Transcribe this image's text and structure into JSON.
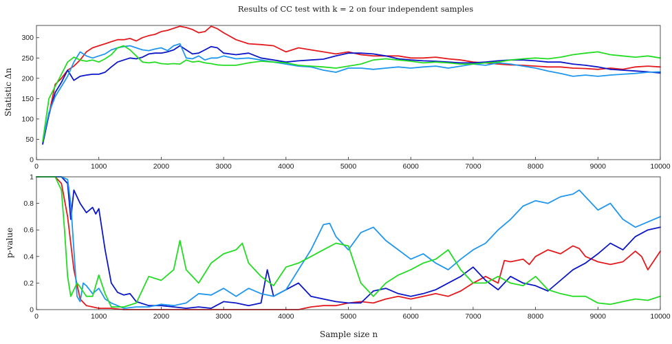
{
  "title": "Results of CC test with k = 2 on four independent samples",
  "colors": {
    "red": "#e3191c",
    "blue": "#0a15c8",
    "cyan": "#1e96f0",
    "green": "#22dc22"
  },
  "chart_data": [
    {
      "type": "line",
      "xlabel": "Sample size n",
      "ylabel": "Statistic Δn",
      "xlim": [
        0,
        10000
      ],
      "ylim": [
        0,
        330
      ],
      "xticks": [
        0,
        1000,
        2000,
        3000,
        4000,
        5000,
        6000,
        7000,
        8000,
        9000,
        10000
      ],
      "yticks": [
        0,
        50,
        100,
        150,
        200,
        250,
        300
      ],
      "grid": false,
      "series": [
        {
          "color": "#e3191c",
          "x": [
            100,
            200,
            300,
            400,
            500,
            600,
            700,
            800,
            900,
            1000,
            1100,
            1200,
            1300,
            1400,
            1500,
            1600,
            1700,
            1800,
            1900,
            2000,
            2100,
            2200,
            2300,
            2400,
            2500,
            2600,
            2700,
            2800,
            2900,
            3000,
            3200,
            3400,
            3600,
            3800,
            4000,
            4200,
            4400,
            4600,
            4800,
            5000,
            5200,
            5400,
            5600,
            5800,
            6000,
            6200,
            6400,
            6600,
            6800,
            7000,
            7200,
            7400,
            7600,
            7800,
            8000,
            8200,
            8400,
            8600,
            8800,
            9000,
            9200,
            9400,
            9600,
            9800,
            10000
          ],
          "y": [
            40,
            110,
            185,
            200,
            220,
            230,
            245,
            265,
            275,
            280,
            285,
            290,
            295,
            295,
            298,
            292,
            300,
            305,
            308,
            315,
            318,
            323,
            328,
            325,
            320,
            312,
            315,
            328,
            322,
            312,
            295,
            285,
            283,
            280,
            265,
            275,
            270,
            265,
            260,
            265,
            258,
            255,
            255,
            255,
            250,
            250,
            252,
            248,
            245,
            240,
            238,
            235,
            233,
            232,
            230,
            228,
            228,
            225,
            224,
            222,
            225,
            222,
            228,
            230,
            228
          ]
        },
        {
          "color": "#0a15c8",
          "x": [
            100,
            200,
            300,
            400,
            500,
            600,
            700,
            800,
            900,
            1000,
            1100,
            1200,
            1300,
            1400,
            1500,
            1600,
            1700,
            1800,
            1900,
            2000,
            2100,
            2200,
            2300,
            2400,
            2500,
            2600,
            2700,
            2800,
            2900,
            3000,
            3200,
            3400,
            3600,
            3800,
            4000,
            4200,
            4400,
            4600,
            4800,
            5000,
            5200,
            5400,
            5600,
            5800,
            6000,
            6200,
            6400,
            6600,
            6800,
            7000,
            7200,
            7400,
            7600,
            7800,
            8000,
            8200,
            8400,
            8600,
            8800,
            9000,
            9200,
            9400,
            9600,
            9800,
            10000
          ],
          "y": [
            38,
            110,
            165,
            190,
            220,
            195,
            205,
            208,
            210,
            210,
            215,
            228,
            240,
            245,
            250,
            248,
            252,
            260,
            262,
            262,
            265,
            270,
            280,
            270,
            260,
            262,
            270,
            278,
            275,
            262,
            258,
            262,
            250,
            245,
            240,
            243,
            245,
            247,
            255,
            262,
            262,
            260,
            255,
            248,
            245,
            243,
            242,
            240,
            238,
            238,
            240,
            243,
            245,
            245,
            243,
            240,
            240,
            235,
            232,
            228,
            222,
            220,
            218,
            216,
            213
          ]
        },
        {
          "color": "#1e96f0",
          "x": [
            100,
            200,
            300,
            400,
            500,
            600,
            700,
            800,
            900,
            1000,
            1100,
            1200,
            1300,
            1400,
            1500,
            1600,
            1700,
            1800,
            1900,
            2000,
            2100,
            2200,
            2300,
            2400,
            2500,
            2600,
            2700,
            2800,
            2900,
            3000,
            3200,
            3400,
            3600,
            3800,
            4000,
            4200,
            4400,
            4600,
            4800,
            5000,
            5200,
            5400,
            5600,
            5800,
            6000,
            6200,
            6400,
            6600,
            6800,
            7000,
            7200,
            7400,
            7600,
            7800,
            8000,
            8200,
            8400,
            8600,
            8800,
            9000,
            9200,
            9400,
            9600,
            9800,
            10000
          ],
          "y": [
            45,
            115,
            155,
            180,
            205,
            240,
            265,
            255,
            250,
            255,
            260,
            270,
            275,
            278,
            280,
            275,
            270,
            268,
            272,
            275,
            268,
            280,
            285,
            250,
            248,
            255,
            245,
            250,
            250,
            255,
            248,
            250,
            245,
            240,
            235,
            230,
            228,
            220,
            215,
            225,
            225,
            222,
            225,
            228,
            225,
            228,
            230,
            225,
            230,
            235,
            232,
            238,
            235,
            230,
            225,
            218,
            212,
            205,
            208,
            205,
            208,
            210,
            212,
            215,
            216
          ]
        },
        {
          "color": "#22dc22",
          "x": [
            100,
            200,
            300,
            400,
            500,
            600,
            700,
            800,
            900,
            1000,
            1100,
            1200,
            1300,
            1400,
            1500,
            1600,
            1700,
            1800,
            1900,
            2000,
            2100,
            2200,
            2300,
            2400,
            2500,
            2600,
            2700,
            2800,
            2900,
            3000,
            3200,
            3400,
            3600,
            3800,
            4000,
            4200,
            4400,
            4600,
            4800,
            5000,
            5200,
            5400,
            5600,
            5800,
            6000,
            6200,
            6400,
            6600,
            6800,
            7000,
            7200,
            7400,
            7600,
            7800,
            8000,
            8200,
            8400,
            8600,
            8800,
            9000,
            9200,
            9400,
            9600,
            9800,
            10000
          ],
          "y": [
            45,
            150,
            180,
            210,
            240,
            252,
            245,
            242,
            245,
            240,
            248,
            258,
            275,
            280,
            270,
            255,
            240,
            238,
            240,
            236,
            235,
            236,
            235,
            245,
            240,
            242,
            238,
            236,
            233,
            232,
            232,
            238,
            242,
            240,
            238,
            232,
            230,
            228,
            225,
            230,
            235,
            245,
            248,
            245,
            242,
            238,
            240,
            238,
            235,
            235,
            238,
            240,
            245,
            248,
            250,
            248,
            252,
            258,
            262,
            265,
            258,
            255,
            252,
            255,
            250
          ]
        }
      ]
    },
    {
      "type": "line",
      "xlabel": "Sample size n",
      "ylabel": "p-value",
      "xlim": [
        0,
        10000
      ],
      "ylim": [
        0,
        1
      ],
      "xticks": [
        0,
        1000,
        2000,
        3000,
        4000,
        5000,
        6000,
        7000,
        8000,
        9000,
        10000
      ],
      "yticks": [
        0,
        0.2,
        0.4,
        0.6,
        0.8,
        1
      ],
      "grid": false,
      "series": [
        {
          "color": "#e3191c",
          "x": [
            0,
            300,
            400,
            500,
            600,
            700,
            800,
            900,
            1000,
            1200,
            1400,
            1600,
            1800,
            2000,
            2200,
            2400,
            2600,
            2800,
            3000,
            3200,
            3400,
            3600,
            3800,
            4000,
            4200,
            4400,
            4600,
            4800,
            5000,
            5200,
            5400,
            5600,
            5800,
            6000,
            6200,
            6400,
            6600,
            6800,
            7000,
            7200,
            7400,
            7500,
            7600,
            7800,
            7900,
            8000,
            8200,
            8400,
            8600,
            8700,
            8800,
            9000,
            9200,
            9400,
            9600,
            9700,
            9800,
            10000
          ],
          "y": [
            1,
            1,
            0.95,
            0.7,
            0.3,
            0.08,
            0.03,
            0.02,
            0.01,
            0.01,
            0,
            0,
            0,
            0,
            0,
            0,
            0,
            0,
            0,
            0,
            0,
            0,
            0,
            0,
            0,
            0.02,
            0.03,
            0.03,
            0.05,
            0.06,
            0.05,
            0.08,
            0.1,
            0.08,
            0.1,
            0.12,
            0.1,
            0.14,
            0.2,
            0.25,
            0.2,
            0.37,
            0.36,
            0.38,
            0.34,
            0.4,
            0.45,
            0.42,
            0.48,
            0.46,
            0.4,
            0.36,
            0.34,
            0.36,
            0.44,
            0.4,
            0.3,
            0.44
          ]
        },
        {
          "color": "#0a15c8",
          "x": [
            0,
            400,
            500,
            550,
            600,
            650,
            700,
            800,
            900,
            950,
            1000,
            1100,
            1200,
            1300,
            1400,
            1500,
            1600,
            1800,
            2000,
            2200,
            2400,
            2600,
            2800,
            3000,
            3200,
            3400,
            3600,
            3700,
            3800,
            4000,
            4200,
            4400,
            4600,
            4800,
            5000,
            5200,
            5400,
            5600,
            5800,
            6000,
            6200,
            6400,
            6600,
            6800,
            7000,
            7200,
            7400,
            7600,
            7800,
            8000,
            8200,
            8400,
            8600,
            8800,
            9000,
            9200,
            9400,
            9600,
            9800,
            10000
          ],
          "y": [
            1,
            1,
            0.95,
            0.68,
            0.9,
            0.85,
            0.8,
            0.73,
            0.77,
            0.72,
            0.76,
            0.45,
            0.2,
            0.13,
            0.11,
            0.12,
            0.06,
            0.03,
            0.03,
            0.02,
            0.01,
            0.02,
            0.01,
            0.06,
            0.05,
            0.03,
            0.05,
            0.3,
            0.1,
            0.15,
            0.2,
            0.1,
            0.08,
            0.06,
            0.05,
            0.05,
            0.14,
            0.16,
            0.12,
            0.1,
            0.12,
            0.15,
            0.2,
            0.25,
            0.32,
            0.22,
            0.15,
            0.25,
            0.2,
            0.18,
            0.14,
            0.22,
            0.3,
            0.35,
            0.42,
            0.5,
            0.45,
            0.55,
            0.6,
            0.62
          ]
        },
        {
          "color": "#1e96f0",
          "x": [
            0,
            400,
            500,
            550,
            600,
            650,
            700,
            750,
            800,
            900,
            1000,
            1100,
            1200,
            1400,
            1600,
            1800,
            2000,
            2200,
            2400,
            2600,
            2800,
            3000,
            3200,
            3400,
            3600,
            3800,
            4000,
            4200,
            4400,
            4600,
            4700,
            4800,
            5000,
            5200,
            5400,
            5600,
            5800,
            6000,
            6200,
            6400,
            6600,
            6800,
            7000,
            7200,
            7400,
            7600,
            7800,
            8000,
            8200,
            8400,
            8600,
            8700,
            8800,
            9000,
            9200,
            9400,
            9600,
            9800,
            10000
          ],
          "y": [
            1,
            1,
            0.98,
            0.8,
            0.45,
            0.1,
            0.06,
            0.2,
            0.18,
            0.12,
            0.16,
            0.08,
            0.05,
            0.01,
            0.02,
            0.02,
            0.04,
            0.03,
            0.05,
            0.12,
            0.11,
            0.16,
            0.1,
            0.16,
            0.12,
            0.1,
            0.15,
            0.3,
            0.45,
            0.64,
            0.65,
            0.55,
            0.45,
            0.58,
            0.62,
            0.52,
            0.45,
            0.38,
            0.42,
            0.35,
            0.3,
            0.38,
            0.45,
            0.5,
            0.6,
            0.68,
            0.78,
            0.82,
            0.8,
            0.85,
            0.87,
            0.9,
            0.85,
            0.75,
            0.8,
            0.68,
            0.62,
            0.66,
            0.7
          ]
        },
        {
          "color": "#22dc22",
          "x": [
            0,
            300,
            400,
            450,
            500,
            550,
            600,
            650,
            700,
            800,
            900,
            1000,
            1100,
            1200,
            1400,
            1600,
            1800,
            2000,
            2200,
            2300,
            2400,
            2600,
            2800,
            3000,
            3200,
            3300,
            3400,
            3600,
            3800,
            4000,
            4200,
            4400,
            4600,
            4800,
            5000,
            5200,
            5400,
            5600,
            5800,
            6000,
            6200,
            6400,
            6600,
            6800,
            7000,
            7200,
            7400,
            7600,
            7800,
            8000,
            8200,
            8400,
            8600,
            8800,
            9000,
            9200,
            9400,
            9600,
            9800,
            10000
          ],
          "y": [
            1,
            1,
            0.9,
            0.6,
            0.25,
            0.1,
            0.15,
            0.2,
            0.17,
            0.1,
            0.1,
            0.26,
            0.12,
            0.02,
            0.02,
            0.05,
            0.25,
            0.22,
            0.3,
            0.52,
            0.3,
            0.2,
            0.35,
            0.42,
            0.45,
            0.5,
            0.35,
            0.25,
            0.18,
            0.32,
            0.35,
            0.4,
            0.45,
            0.5,
            0.48,
            0.2,
            0.1,
            0.2,
            0.26,
            0.3,
            0.35,
            0.38,
            0.45,
            0.3,
            0.2,
            0.2,
            0.25,
            0.2,
            0.18,
            0.25,
            0.15,
            0.12,
            0.1,
            0.1,
            0.05,
            0.04,
            0.06,
            0.08,
            0.07,
            0.1
          ]
        }
      ]
    }
  ]
}
